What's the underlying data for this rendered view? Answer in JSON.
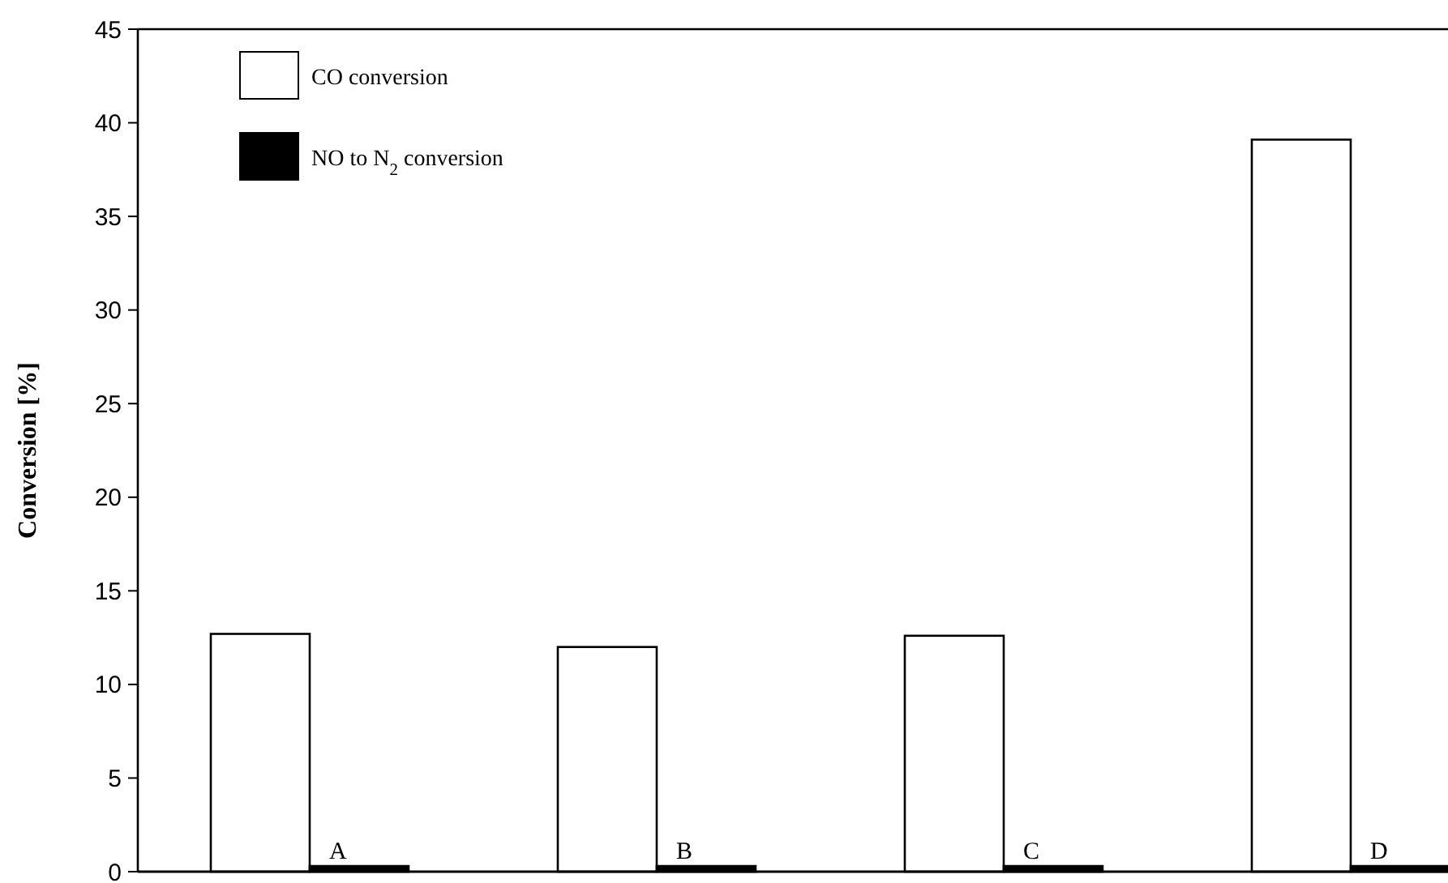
{
  "chart_data": {
    "type": "bar",
    "ylabel": "Conversion [%]",
    "categories": [
      "A",
      "B",
      "C",
      "D"
    ],
    "series": [
      {
        "name": "CO  conversion",
        "color": "#ffffff",
        "values": [
          12.7,
          12.0,
          12.6,
          39.1
        ]
      },
      {
        "name": "NO to N$_{2}$ conversion",
        "color": "#000000",
        "values": [
          0.3,
          0.3,
          0.3,
          0.3
        ]
      }
    ],
    "ylim": [
      0,
      45
    ],
    "yticks": [
      0,
      5,
      10,
      15,
      20,
      25,
      30,
      35,
      40,
      45
    ],
    "legend": "top left"
  }
}
